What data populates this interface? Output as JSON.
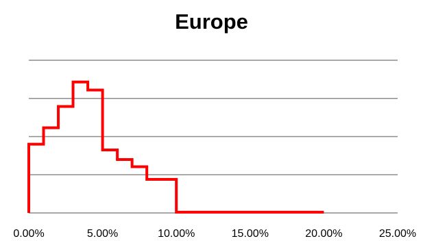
{
  "chart_data": {
    "type": "line",
    "title": "Europe",
    "xlabel": "",
    "ylabel": "",
    "x_ticks": [
      "0.00%",
      "5.00%",
      "10.00%",
      "15.00%",
      "20.00%",
      "25.00%"
    ],
    "xlim": [
      0,
      25
    ],
    "ylim": [
      0,
      4
    ],
    "grid": true,
    "legend": "none",
    "step_shape": "steps-post",
    "series": [
      {
        "color": "#ff0000",
        "x": [
          0,
          0,
          1,
          2,
          3,
          4,
          5,
          6,
          7,
          8,
          9,
          10,
          11,
          12,
          13,
          14,
          15,
          16,
          17,
          18,
          19,
          20
        ],
        "y": [
          0,
          1.8,
          2.23,
          2.79,
          3.43,
          3.22,
          1.65,
          1.4,
          1.21,
          0.88,
          0.88,
          0.02,
          0.02,
          0.02,
          0.02,
          0.02,
          0.02,
          0.02,
          0.02,
          0.02,
          0.02,
          0.02
        ]
      }
    ]
  }
}
